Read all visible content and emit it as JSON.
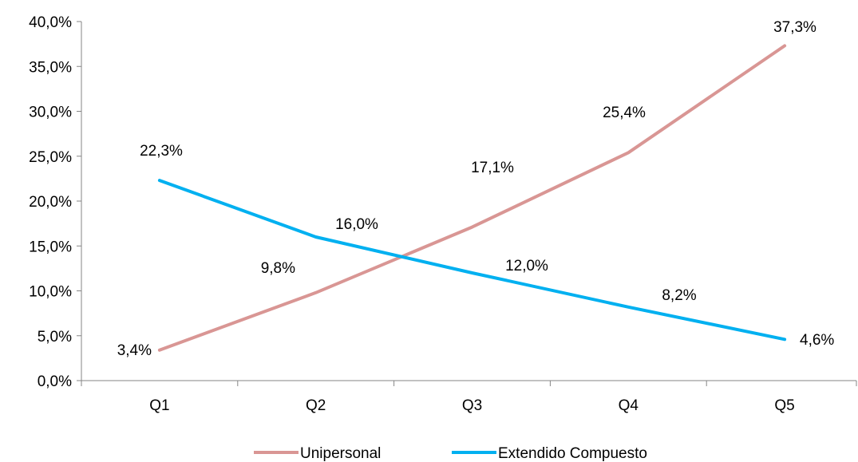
{
  "chart_data": {
    "type": "line",
    "categories": [
      "Q1",
      "Q2",
      "Q3",
      "Q4",
      "Q5"
    ],
    "ylim": [
      0,
      40
    ],
    "y_ticks": [
      0,
      5,
      10,
      15,
      20,
      25,
      30,
      35,
      40
    ],
    "y_tick_labels": [
      "0,0%",
      "5,0%",
      "10,0%",
      "15,0%",
      "20,0%",
      "25,0%",
      "30,0%",
      "35,0%",
      "40,0%"
    ],
    "grid": false,
    "legend_position": "bottom",
    "series": [
      {
        "name": "Unipersonal",
        "color": "#d99694",
        "values": [
          3.4,
          9.8,
          17.1,
          25.4,
          37.3
        ],
        "labels": [
          "3,4%",
          "9,8%",
          "17,1%",
          "25,4%",
          "37,3%"
        ]
      },
      {
        "name": "Extendido Compuesto",
        "color": "#00b0f0",
        "values": [
          22.3,
          16.0,
          12.0,
          8.2,
          4.6
        ],
        "labels": [
          "22,3%",
          "16,0%",
          "12,0%",
          "8,2%",
          "4,6%"
        ]
      }
    ]
  }
}
